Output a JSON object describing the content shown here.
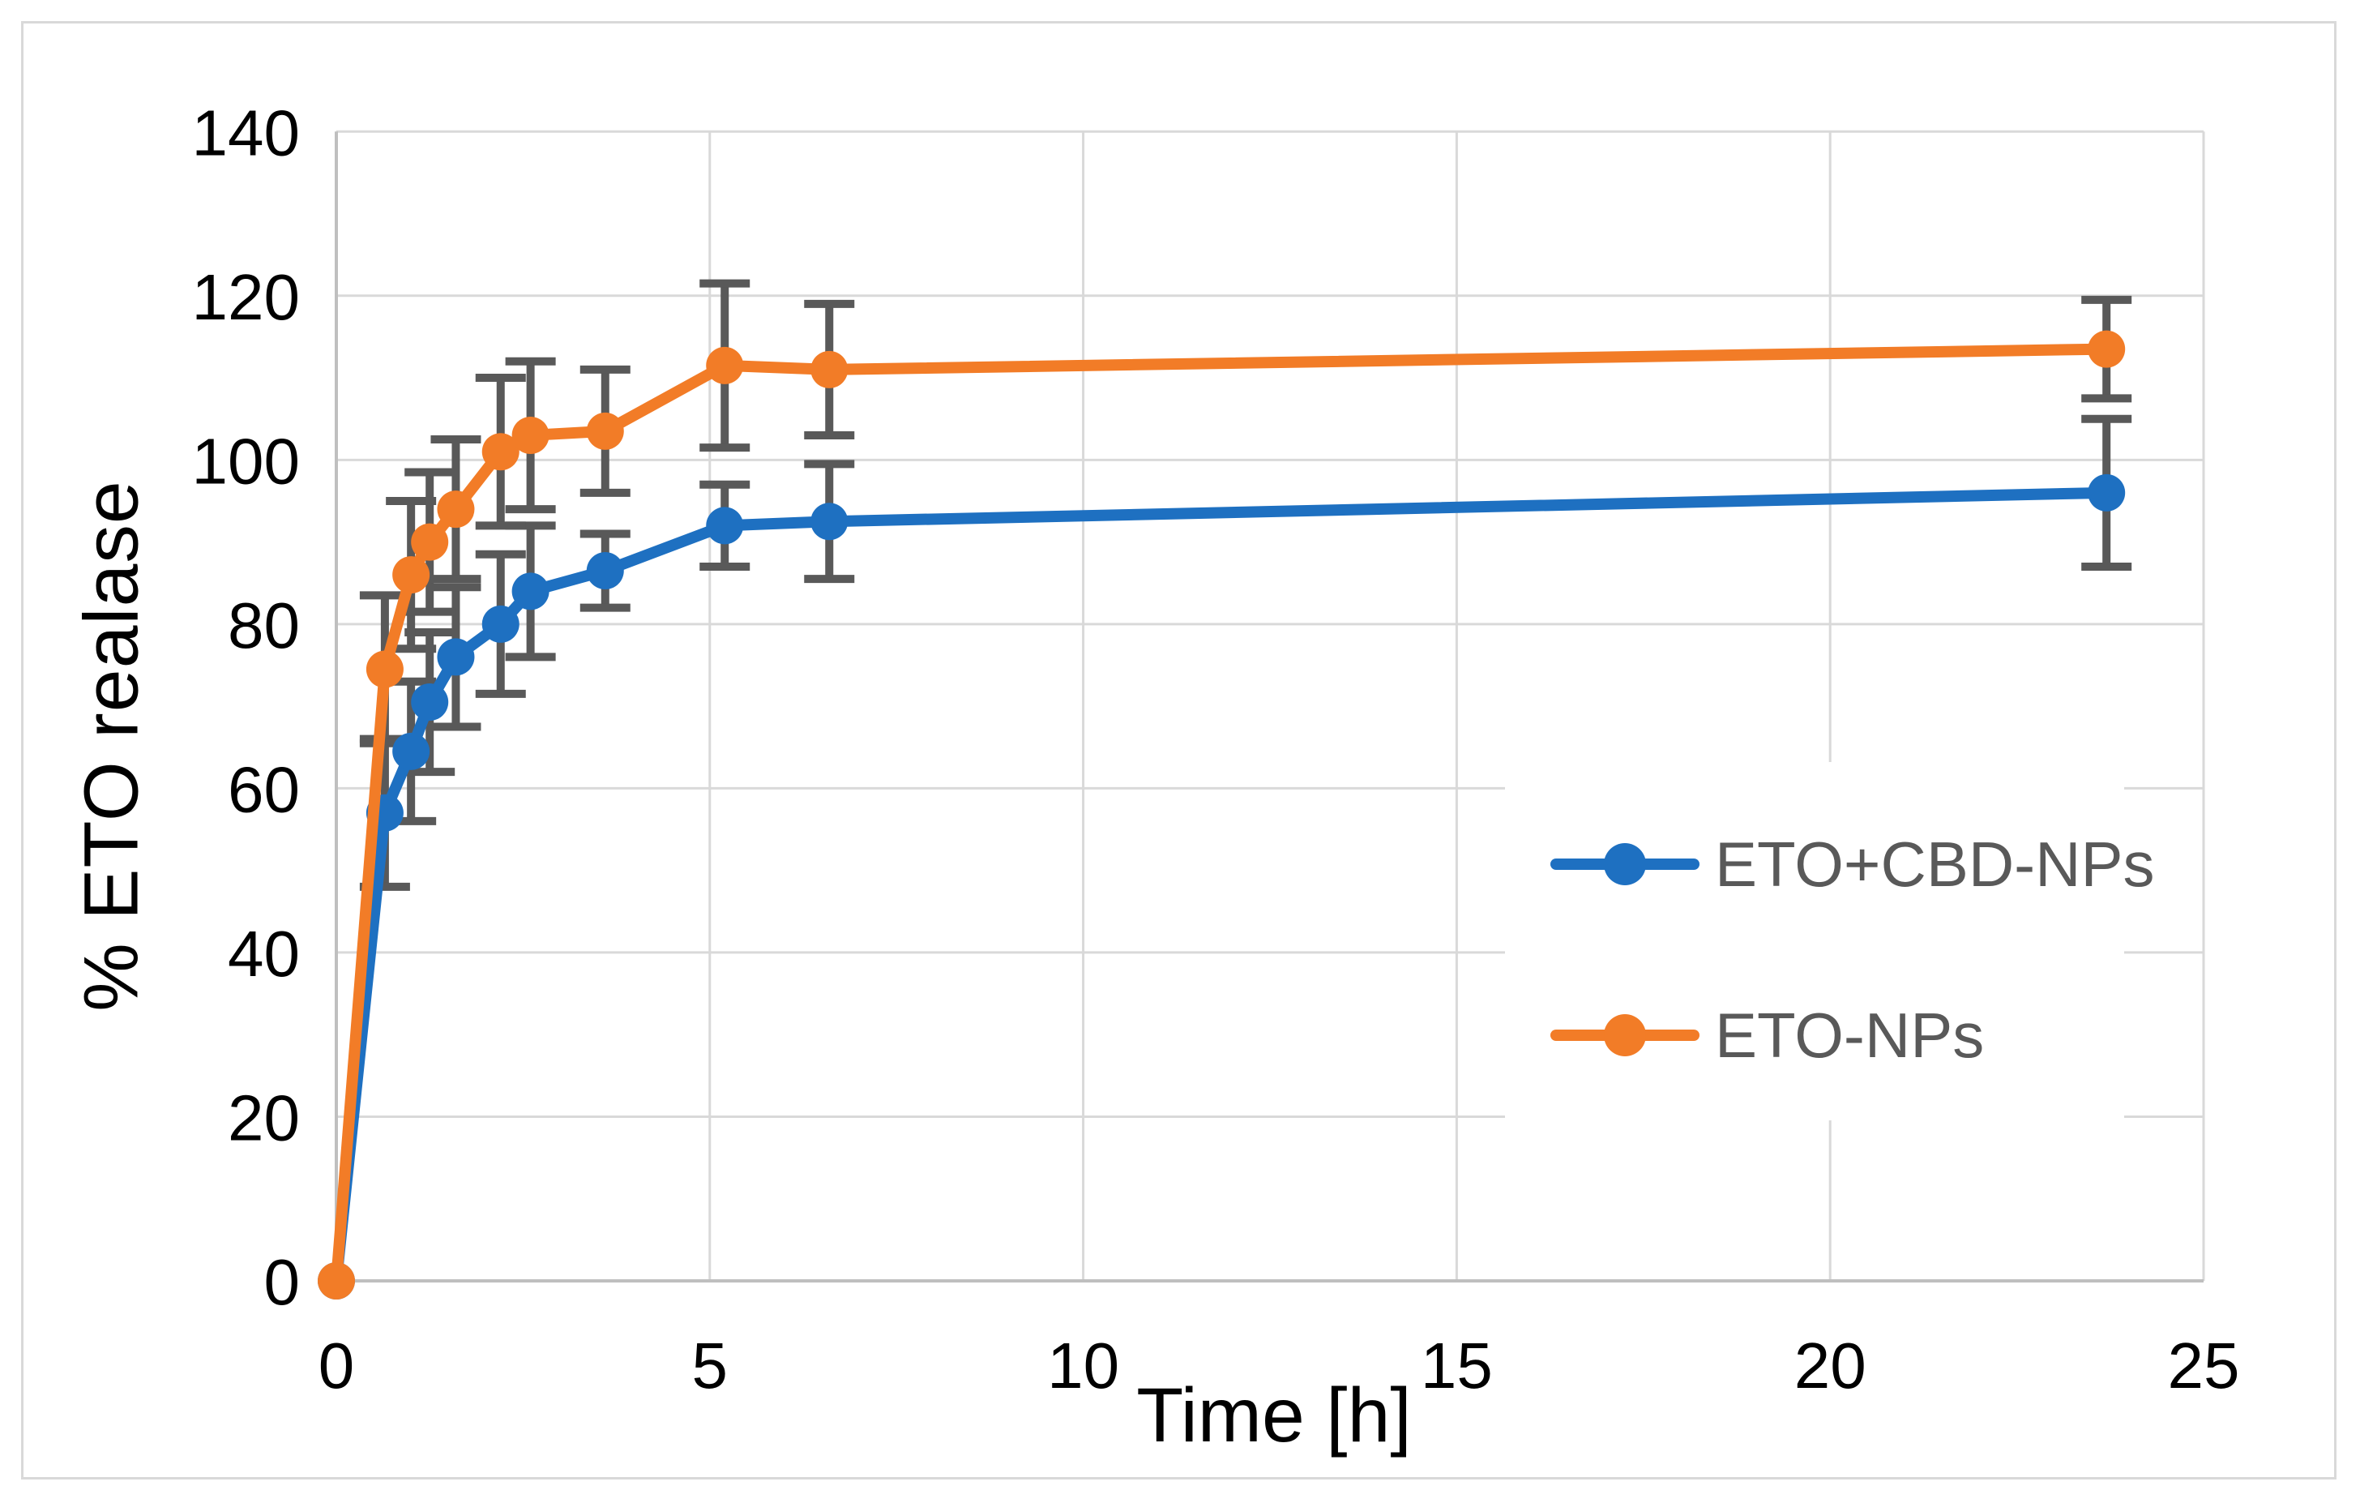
{
  "chart_data": {
    "type": "line",
    "title": "",
    "xlabel": "Time [h]",
    "ylabel": "% ETO realase",
    "xlim": [
      0,
      25
    ],
    "ylim": [
      0,
      140
    ],
    "x_ticks": [
      0,
      5,
      10,
      15,
      20,
      25
    ],
    "y_ticks": [
      0,
      20,
      40,
      60,
      80,
      100,
      120,
      140
    ],
    "grid": true,
    "legend_position": "inside-right",
    "x": [
      0,
      0.65,
      1,
      1.25,
      1.6,
      2.2,
      2.6,
      3.6,
      5.2,
      6.6,
      23.7
    ],
    "series": [
      {
        "name": "ETO+CBD-NPs",
        "color": "#1e70c1",
        "values": [
          0,
          57,
          64.5,
          70.5,
          76,
          80,
          84,
          86.5,
          92,
          92.5,
          96
        ],
        "errors": [
          0,
          9,
          8.5,
          8.5,
          8.5,
          8.5,
          8,
          4.5,
          5,
          7,
          9
        ]
      },
      {
        "name": "ETO-NPs",
        "color": "#f27c27",
        "values": [
          0,
          74.5,
          86,
          90,
          94,
          101,
          103,
          103.5,
          111.5,
          111,
          113.5
        ],
        "errors": [
          0,
          9,
          9,
          8.5,
          8.5,
          9,
          9,
          7.5,
          10,
          8,
          6
        ]
      }
    ],
    "error_bar_color": "#595959",
    "gridline_color": "#d9d9d9",
    "axis_line_color": "#bfbfbf",
    "tick_label_color": "#000000",
    "legend_text_color": "#595959"
  }
}
